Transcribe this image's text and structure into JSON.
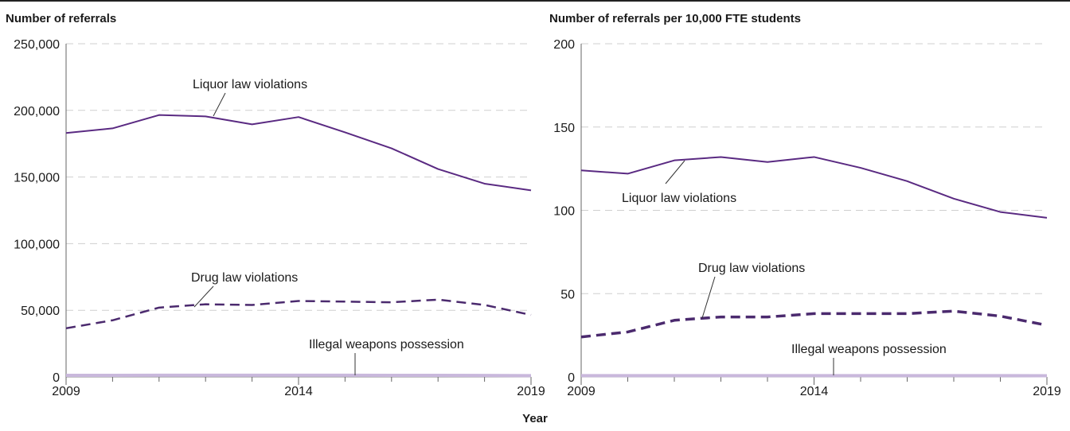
{
  "x_axis_title": "Year",
  "colors": {
    "liquor": "#5a2a82",
    "drug": "#4b2a6e",
    "weapons": "#c9b8dc",
    "grid": "#cfcfcf",
    "axis": "#666666"
  },
  "chart_data": [
    {
      "type": "line",
      "title": "Number of referrals",
      "xlabel": "Year",
      "ylabel": "",
      "xlim": [
        2009,
        2019
      ],
      "ylim": [
        0,
        250000
      ],
      "x_ticks": [
        2009,
        2014,
        2019
      ],
      "y_ticks": [
        0,
        50000,
        100000,
        150000,
        200000,
        250000
      ],
      "y_tick_labels": [
        "0",
        "50,000",
        "100,000",
        "150,000",
        "200,000",
        "250,000"
      ],
      "grid": true,
      "x": [
        2009,
        2010,
        2011,
        2012,
        2013,
        2014,
        2015,
        2016,
        2017,
        2018,
        2019
      ],
      "series": [
        {
          "name": "Liquor law violations",
          "style": "solid",
          "values": [
            183000,
            186500,
            196500,
            195500,
            189500,
            195000,
            183500,
            171500,
            156000,
            145000,
            140000
          ]
        },
        {
          "name": "Drug law violations",
          "style": "dashed",
          "values": [
            36500,
            42500,
            52000,
            54500,
            54000,
            57000,
            56500,
            56000,
            58000,
            54000,
            46500
          ]
        },
        {
          "name": "Illegal weapons possession",
          "style": "solid-light",
          "values": [
            1200,
            1200,
            1300,
            1300,
            1300,
            1300,
            1300,
            1200,
            1200,
            1100,
            1000
          ]
        }
      ]
    },
    {
      "type": "line",
      "title": "Number of referrals per 10,000 FTE students",
      "xlabel": "Year",
      "ylabel": "",
      "xlim": [
        2009,
        2019
      ],
      "ylim": [
        0,
        200
      ],
      "x_ticks": [
        2009,
        2014,
        2019
      ],
      "y_ticks": [
        0,
        50,
        100,
        150,
        200
      ],
      "y_tick_labels": [
        "0",
        "50",
        "100",
        "150",
        "200"
      ],
      "grid": true,
      "x": [
        2009,
        2010,
        2011,
        2012,
        2013,
        2014,
        2015,
        2016,
        2017,
        2018,
        2019
      ],
      "series": [
        {
          "name": "Liquor law violations",
          "style": "solid",
          "values": [
            124,
            122,
            130,
            132,
            129,
            132,
            125.5,
            117.5,
            107,
            99,
            95.5
          ]
        },
        {
          "name": "Drug law violations",
          "style": "dashed",
          "values": [
            24,
            27,
            34,
            36,
            36,
            38,
            38,
            38,
            39.5,
            36.5,
            31
          ]
        },
        {
          "name": "Illegal weapons possession",
          "style": "solid-light",
          "values": [
            0.8,
            0.8,
            0.8,
            0.8,
            0.8,
            0.8,
            0.8,
            0.8,
            0.8,
            0.8,
            0.7
          ]
        }
      ]
    }
  ]
}
